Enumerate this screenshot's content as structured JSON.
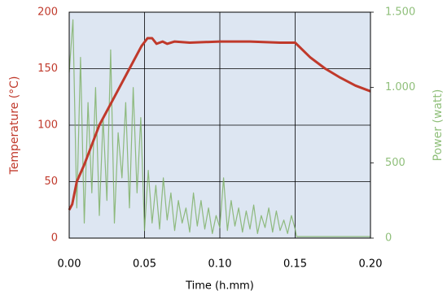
{
  "chart_data": {
    "type": "line",
    "xlabel": "Time (h.mm)",
    "ylabel": "Temperature (°C)",
    "y2label": "Power (watt)",
    "xlim": [
      0,
      0.2
    ],
    "xticks": [
      {
        "value": 0,
        "label": "0.00"
      },
      0.05,
      {
        "value": 0.1,
        "label": "0.10"
      },
      0.15,
      {
        "value": 0.2,
        "label": "0.20"
      }
    ],
    "ylim": [
      0,
      200
    ],
    "yticks": [
      0,
      50,
      100,
      150,
      200
    ],
    "y2lim": [
      0,
      1500
    ],
    "y2ticks": [
      0,
      500,
      {
        "value": 1000,
        "label": "1.000"
      },
      {
        "value": 1500,
        "label": "1.500"
      }
    ],
    "grid": true,
    "series": [
      {
        "axis": "y2",
        "color": "#7fb069",
        "x": [
          0,
          0.0025,
          0.005,
          0.0075,
          0.01,
          0.0125,
          0.015,
          0.0175,
          0.02,
          0.0225,
          0.025,
          0.0275,
          0.03,
          0.0325,
          0.035,
          0.0375,
          0.04,
          0.0425,
          0.045,
          0.0475,
          0.05,
          0.0525,
          0.055,
          0.0575,
          0.06,
          0.0625,
          0.065,
          0.0675,
          0.07,
          0.0725,
          0.075,
          0.0775,
          0.08,
          0.0825,
          0.085,
          0.0875,
          0.09,
          0.0925,
          0.095,
          0.0975,
          0.1,
          0.1025,
          0.105,
          0.1075,
          0.11,
          0.1125,
          0.115,
          0.1175,
          0.12,
          0.1225,
          0.125,
          0.1275,
          0.13,
          0.1325,
          0.135,
          0.1375,
          0.14,
          0.1425,
          0.145,
          0.1475,
          0.15,
          0.151,
          0.2
        ],
        "values": [
          1100,
          1450,
          200,
          1200,
          100,
          900,
          300,
          1000,
          150,
          800,
          250,
          1250,
          100,
          700,
          400,
          900,
          200,
          1000,
          300,
          800,
          50,
          450,
          100,
          350,
          60,
          400,
          120,
          300,
          50,
          250,
          100,
          200,
          40,
          300,
          80,
          250,
          60,
          200,
          30,
          150,
          70,
          400,
          50,
          250,
          80,
          200,
          40,
          180,
          60,
          220,
          30,
          150,
          70,
          200,
          40,
          180,
          50,
          120,
          30,
          150,
          60,
          10,
          10
        ]
      },
      {
        "axis": "y",
        "color": "#c0392b",
        "x": [
          0,
          0.002,
          0.005,
          0.01,
          0.02,
          0.03,
          0.04,
          0.048,
          0.052,
          0.055,
          0.058,
          0.062,
          0.065,
          0.07,
          0.08,
          0.1,
          0.12,
          0.14,
          0.15,
          0.16,
          0.17,
          0.18,
          0.19,
          0.2
        ],
        "values": [
          25,
          30,
          50,
          65,
          100,
          125,
          150,
          170,
          177,
          177,
          172,
          174,
          172,
          174,
          173,
          174,
          174,
          173,
          173,
          160,
          150,
          142,
          135,
          130
        ]
      }
    ]
  }
}
